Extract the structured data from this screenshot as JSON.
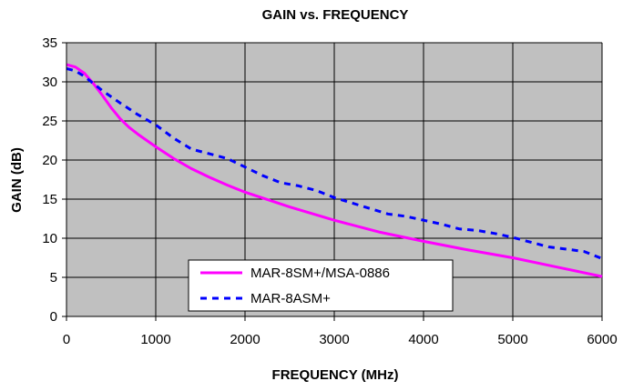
{
  "chart_data": {
    "type": "line",
    "title": "GAIN vs. FREQUENCY",
    "xlabel": "FREQUENCY (MHz)",
    "ylabel": "GAIN (dB)",
    "xlim": [
      0,
      6000
    ],
    "ylim": [
      0,
      35
    ],
    "x_ticks": [
      0,
      1000,
      2000,
      3000,
      4000,
      5000,
      6000
    ],
    "y_ticks": [
      0,
      5,
      10,
      15,
      20,
      25,
      30,
      35
    ],
    "x_tick_labels": [
      "0",
      "1000",
      "2000",
      "3000",
      "4000",
      "5000",
      "6000"
    ],
    "y_tick_labels": [
      "0",
      "5",
      "10",
      "15",
      "20",
      "25",
      "30",
      "35"
    ],
    "grid": true,
    "plot_background": "#c0c0c0",
    "legend_position": "bottom-center",
    "series": [
      {
        "name": "MAR-8SM+/MSA-0886",
        "color": "#ff00ff",
        "line_style": "solid",
        "x": [
          0,
          100,
          200,
          300,
          400,
          500,
          600,
          700,
          800,
          1000,
          1200,
          1400,
          1600,
          1800,
          2000,
          2500,
          3000,
          3500,
          4000,
          4500,
          5000,
          5500,
          6000
        ],
        "y": [
          32.2,
          31.9,
          31.1,
          29.8,
          28.3,
          26.7,
          25.3,
          24.2,
          23.3,
          21.7,
          20.2,
          18.9,
          17.8,
          16.8,
          15.9,
          14.0,
          12.3,
          10.8,
          9.6,
          8.5,
          7.5,
          6.3,
          5.1
        ]
      },
      {
        "name": "MAR-8ASM+",
        "color": "#0000ff",
        "line_style": "dashed",
        "x": [
          0,
          100,
          200,
          300,
          400,
          600,
          800,
          1000,
          1200,
          1400,
          1600,
          1800,
          2000,
          2200,
          2400,
          2600,
          2800,
          3000,
          3200,
          3400,
          3600,
          3800,
          4000,
          4200,
          4400,
          4600,
          4800,
          5000,
          5200,
          5400,
          5600,
          5800,
          6000
        ],
        "y": [
          31.7,
          31.4,
          30.7,
          29.8,
          28.9,
          27.3,
          25.8,
          24.5,
          22.8,
          21.4,
          20.8,
          20.2,
          19.1,
          18.0,
          17.1,
          16.7,
          16.1,
          15.2,
          14.5,
          13.8,
          13.1,
          12.8,
          12.3,
          11.8,
          11.2,
          11.0,
          10.6,
          10.1,
          9.5,
          8.9,
          8.6,
          8.3,
          7.4
        ]
      }
    ]
  }
}
